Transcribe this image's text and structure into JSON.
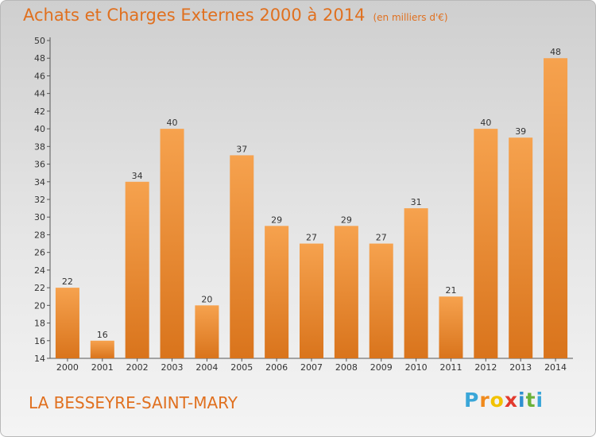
{
  "header": {
    "title": "Achats et Charges Externes 2000 à 2014",
    "unit": "(en milliers d'€)"
  },
  "footer": {
    "town": "LA BESSEYRE-SAINT-MARY",
    "logo_letters": [
      "P",
      "r",
      "o",
      "x",
      "i",
      "t",
      "i"
    ],
    "logo_colors": [
      "#3aa6d8",
      "#f08a1c",
      "#f2c200",
      "#e23a2e",
      "#2f8fd0",
      "#6ab23a",
      "#3aa6d8"
    ]
  },
  "colors": {
    "bar_light": "#f6a24e",
    "bar_dark": "#d9741c",
    "accent": "#e0701f"
  },
  "chart_data": {
    "type": "bar",
    "title": "Achats et Charges Externes 2000 à 2014",
    "subtitle": "(en milliers d'€)",
    "xlabel": "",
    "ylabel": "",
    "categories": [
      "2000",
      "2001",
      "2002",
      "2003",
      "2004",
      "2005",
      "2006",
      "2007",
      "2008",
      "2009",
      "2010",
      "2011",
      "2012",
      "2013",
      "2014"
    ],
    "values": [
      22,
      16,
      34,
      40,
      20,
      37,
      29,
      27,
      29,
      27,
      31,
      21,
      40,
      39,
      48
    ],
    "ylim": [
      14,
      50
    ],
    "yticks": [
      14,
      16,
      18,
      20,
      22,
      24,
      26,
      28,
      30,
      32,
      34,
      36,
      38,
      40,
      42,
      44,
      46,
      48,
      50
    ],
    "grid": false,
    "legend": "none"
  }
}
